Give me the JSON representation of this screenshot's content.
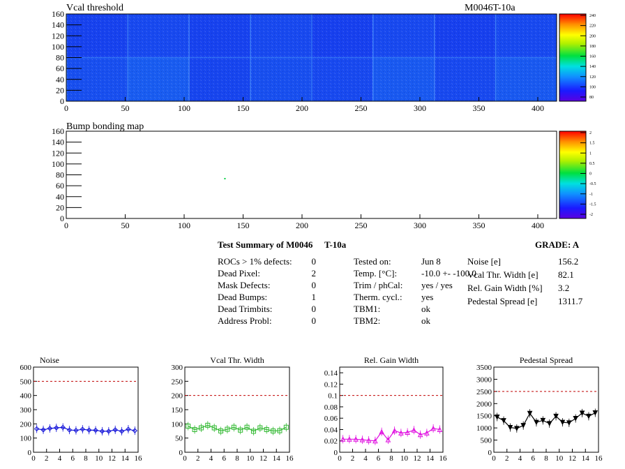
{
  "module_id": "M0046T-10a",
  "maps": [
    {
      "title": "Vcal threshold",
      "palette": "blue-yellow-red",
      "x_ticks": [
        0,
        50,
        100,
        150,
        200,
        250,
        300,
        350,
        400
      ],
      "y_ticks": [
        0,
        20,
        40,
        60,
        80,
        100,
        120,
        140,
        160
      ],
      "xlim": [
        0,
        416
      ],
      "ylim": [
        0,
        160
      ],
      "scale_labels": [
        "80",
        "100",
        "120",
        "140",
        "160",
        "180",
        "200",
        "220",
        "240"
      ]
    },
    {
      "title": "Bump bonding map",
      "palette": "blue-yellow-red",
      "x_ticks": [
        0,
        50,
        100,
        150,
        200,
        250,
        300,
        350,
        400
      ],
      "y_ticks": [
        0,
        20,
        40,
        60,
        80,
        100,
        120,
        140,
        160
      ],
      "xlim": [
        0,
        416
      ],
      "ylim": [
        0,
        160
      ],
      "scale_labels": [
        "-2",
        "-1.5",
        "-1",
        "-0.5",
        "0",
        "0.5",
        "1",
        "1.5",
        "2"
      ]
    }
  ],
  "summary": {
    "title": "Test Summary of M0046",
    "title_suffix": "T-10a",
    "grade": "GRADE:  A",
    "defects": [
      {
        "label": "ROCs > 1% defects:",
        "value": "0"
      },
      {
        "label": "Dead Pixel:",
        "value": "2"
      },
      {
        "label": "Mask Defects:",
        "value": "0"
      },
      {
        "label": "Dead Bumps:",
        "value": "1"
      },
      {
        "label": "Dead Trimbits:",
        "value": "0"
      },
      {
        "label": "Address Probl:",
        "value": "0"
      }
    ],
    "conditions": [
      {
        "label": "Tested on:",
        "value": "Jun 8"
      },
      {
        "label": "Temp. [°C]:",
        "value": "-10.0 +- -100.0"
      },
      {
        "label": "Trim / phCal:",
        "value": "yes / yes"
      },
      {
        "label": "Therm. cycl.:",
        "value": "yes"
      },
      {
        "label": "TBM1:",
        "value": "ok"
      },
      {
        "label": "TBM2:",
        "value": "ok"
      }
    ],
    "results": [
      {
        "label": "Noise [e]",
        "value": "156.2"
      },
      {
        "label": "Vcal Thr. Width [e]",
        "value": "82.1"
      },
      {
        "label": "Rel. Gain Width [%]",
        "value": "3.2"
      },
      {
        "label": "Pedestal Spread [e]",
        "value": "1311.7"
      }
    ]
  },
  "chart_data": [
    {
      "type": "heatmap",
      "title": "Vcal threshold",
      "xlim": [
        0,
        416
      ],
      "ylim": [
        0,
        160
      ],
      "colorbar_range": [
        80,
        240
      ],
      "roc_grid": {
        "columns": 8,
        "rows": 2
      },
      "roc_means_top": [
        104,
        108,
        104,
        108,
        103,
        108,
        103,
        108
      ],
      "roc_means_bottom": [
        112,
        120,
        106,
        112,
        108,
        118,
        108,
        118
      ]
    },
    {
      "type": "heatmap",
      "title": "Bump bonding map",
      "xlim": [
        0,
        416
      ],
      "ylim": [
        0,
        160
      ],
      "colorbar_range": [
        -2,
        2
      ],
      "hits": [
        {
          "x": 134,
          "y": 73
        }
      ]
    },
    {
      "type": "line",
      "title": "Noise",
      "x": [
        0,
        1,
        2,
        3,
        4,
        5,
        6,
        7,
        8,
        9,
        10,
        11,
        12,
        13,
        14,
        15
      ],
      "values": [
        165,
        158,
        168,
        172,
        175,
        157,
        154,
        162,
        156,
        155,
        148,
        148,
        158,
        148,
        162,
        152
      ],
      "xlim": [
        0,
        16
      ],
      "ylim": [
        0,
        600
      ],
      "reference": 500,
      "color": "#1010d8",
      "marker": "diamond",
      "x_ticks": [
        0,
        2,
        4,
        6,
        8,
        10,
        12,
        14,
        16
      ],
      "y_ticks": [
        0,
        100,
        200,
        300,
        400,
        500,
        600
      ],
      "y_tick_labels": [
        "0",
        "100",
        "200",
        "300",
        "400",
        "500",
        "600"
      ]
    },
    {
      "type": "line",
      "title": "Vcal Thr. Width",
      "x": [
        0,
        1,
        2,
        3,
        4,
        5,
        6,
        7,
        8,
        9,
        10,
        11,
        12,
        13,
        14,
        15
      ],
      "values": [
        92,
        80,
        86,
        95,
        86,
        75,
        81,
        88,
        78,
        88,
        74,
        86,
        80,
        75,
        76,
        88
      ],
      "xlim": [
        0,
        16
      ],
      "ylim": [
        0,
        300
      ],
      "reference": 200,
      "color": "#30b830",
      "marker": "square",
      "x_ticks": [
        0,
        2,
        4,
        6,
        8,
        10,
        12,
        14,
        16
      ],
      "y_ticks": [
        0,
        50,
        100,
        150,
        200,
        250,
        300
      ],
      "y_tick_labels": [
        "0",
        "50",
        "100",
        "150",
        "200",
        "250",
        "300"
      ]
    },
    {
      "type": "line",
      "title": "Rel. Gain Width",
      "x": [
        0,
        1,
        2,
        3,
        4,
        5,
        6,
        7,
        8,
        9,
        10,
        11,
        12,
        13,
        14,
        15
      ],
      "values": [
        0.023,
        0.023,
        0.023,
        0.022,
        0.021,
        0.02,
        0.036,
        0.022,
        0.038,
        0.034,
        0.035,
        0.039,
        0.031,
        0.034,
        0.042,
        0.04
      ],
      "xlim": [
        0,
        16
      ],
      "ylim": [
        0,
        0.15
      ],
      "reference": 0.1,
      "color": "#e010e0",
      "marker": "triangle",
      "x_ticks": [
        0,
        2,
        4,
        6,
        8,
        10,
        12,
        14,
        16
      ],
      "y_ticks": [
        0,
        0.02,
        0.04,
        0.06,
        0.08,
        0.1,
        0.12,
        0.14
      ],
      "y_tick_labels": [
        "0",
        "0.02",
        "0.04",
        "0.06",
        "0.08",
        "0.1",
        "0.12",
        "0.14"
      ]
    },
    {
      "type": "line",
      "title": "Pedestal Spread",
      "x": [
        0,
        1,
        2,
        3,
        4,
        5,
        6,
        7,
        8,
        9,
        10,
        11,
        12,
        13,
        14,
        15
      ],
      "values": [
        1450,
        1300,
        1020,
        980,
        1100,
        1600,
        1230,
        1310,
        1180,
        1480,
        1230,
        1210,
        1390,
        1610,
        1480,
        1620
      ],
      "xlim": [
        0,
        16
      ],
      "ylim": [
        0,
        3500
      ],
      "reference": 2500,
      "color": "#000000",
      "marker": "triangle-down",
      "x_ticks": [
        0,
        2,
        4,
        6,
        8,
        10,
        12,
        14,
        16
      ],
      "y_ticks": [
        0,
        500,
        1000,
        1500,
        2000,
        2500,
        3000,
        3500
      ],
      "y_tick_labels": [
        "0",
        "500",
        "1000",
        "1500",
        "2000",
        "2500",
        "3000",
        "3500"
      ]
    }
  ]
}
